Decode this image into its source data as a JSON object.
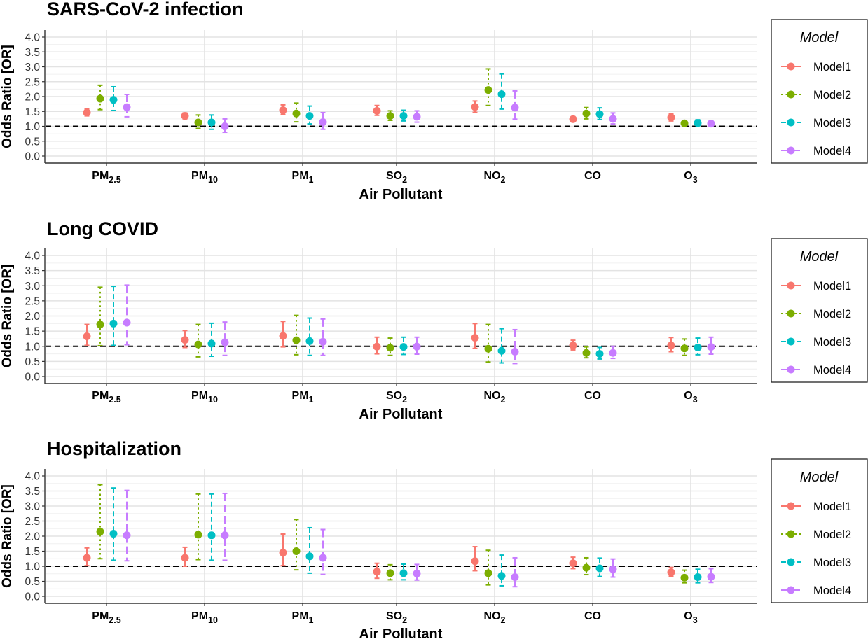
{
  "chart_data": [
    {
      "type": "errorbar",
      "title": "SARS-CoV-2 infection",
      "xlabel": "Air Pollutant",
      "ylabel": "Odds Ratio [OR]",
      "ylim": [
        0,
        4.0
      ],
      "yticks": [
        "0.0",
        "0.5",
        "1.0",
        "1.5",
        "2.0",
        "2.5",
        "3.0",
        "3.5",
        "4.0"
      ],
      "reference_line": 1.0,
      "categories": [
        {
          "base": "PM",
          "sub": "2.5"
        },
        {
          "base": "PM",
          "sub": "10"
        },
        {
          "base": "PM",
          "sub": "1"
        },
        {
          "base": "SO",
          "sub": "2"
        },
        {
          "base": "NO",
          "sub": "2"
        },
        {
          "base": "CO",
          "sub": ""
        },
        {
          "base": "O",
          "sub": "3"
        }
      ],
      "series": [
        {
          "name": "Model1",
          "or": [
            1.46,
            1.35,
            1.54,
            1.52,
            1.65,
            1.24,
            1.3
          ],
          "lower": [
            1.35,
            1.25,
            1.4,
            1.37,
            1.47,
            1.18,
            1.18
          ],
          "upper": [
            1.58,
            1.45,
            1.72,
            1.7,
            1.85,
            1.3,
            1.42
          ]
        },
        {
          "name": "Model2",
          "or": [
            1.93,
            1.13,
            1.43,
            1.35,
            2.22,
            1.43,
            1.1
          ],
          "lower": [
            1.56,
            0.93,
            1.15,
            1.2,
            1.7,
            1.25,
            1.02
          ],
          "upper": [
            2.38,
            1.38,
            1.78,
            1.52,
            2.93,
            1.63,
            1.2
          ]
        },
        {
          "name": "Model3",
          "or": [
            1.89,
            1.13,
            1.35,
            1.35,
            2.08,
            1.41,
            1.11
          ],
          "lower": [
            1.53,
            0.9,
            1.08,
            1.18,
            1.58,
            1.23,
            1.02
          ],
          "upper": [
            2.33,
            1.38,
            1.68,
            1.54,
            2.76,
            1.62,
            1.22
          ]
        },
        {
          "name": "Model4",
          "or": [
            1.64,
            1.0,
            1.14,
            1.32,
            1.63,
            1.25,
            1.09
          ],
          "lower": [
            1.32,
            0.8,
            0.9,
            1.14,
            1.24,
            1.08,
            1.0
          ],
          "upper": [
            2.07,
            1.25,
            1.46,
            1.52,
            2.19,
            1.45,
            1.2
          ]
        }
      ]
    },
    {
      "type": "errorbar",
      "title": "Long COVID",
      "xlabel": "Air Pollutant",
      "ylabel": "Odds Ratio [OR]",
      "ylim": [
        0,
        4.0
      ],
      "yticks": [
        "0.0",
        "0.5",
        "1.0",
        "1.5",
        "2.0",
        "2.5",
        "3.0",
        "3.5",
        "4.0"
      ],
      "reference_line": 1.0,
      "categories": [
        {
          "base": "PM",
          "sub": "2.5"
        },
        {
          "base": "PM",
          "sub": "10"
        },
        {
          "base": "PM",
          "sub": "1"
        },
        {
          "base": "SO",
          "sub": "2"
        },
        {
          "base": "NO",
          "sub": "2"
        },
        {
          "base": "CO",
          "sub": ""
        },
        {
          "base": "O",
          "sub": "3"
        }
      ],
      "series": [
        {
          "name": "Model1",
          "or": [
            1.33,
            1.21,
            1.34,
            0.99,
            1.28,
            1.03,
            1.03
          ],
          "lower": [
            1.03,
            0.96,
            0.98,
            0.75,
            0.93,
            0.88,
            0.82
          ],
          "upper": [
            1.72,
            1.52,
            1.82,
            1.3,
            1.75,
            1.2,
            1.29
          ]
        },
        {
          "name": "Model2",
          "or": [
            1.72,
            1.06,
            1.2,
            0.95,
            0.92,
            0.78,
            0.93
          ],
          "lower": [
            1.02,
            0.65,
            0.72,
            0.7,
            0.48,
            0.62,
            0.7
          ],
          "upper": [
            2.95,
            1.72,
            2.02,
            1.27,
            1.72,
            0.98,
            1.24
          ]
        },
        {
          "name": "Model3",
          "or": [
            1.75,
            1.09,
            1.17,
            0.98,
            0.85,
            0.75,
            0.96
          ],
          "lower": [
            1.03,
            0.67,
            0.7,
            0.73,
            0.45,
            0.58,
            0.72
          ],
          "upper": [
            2.98,
            1.76,
            1.93,
            1.3,
            1.58,
            0.96,
            1.27
          ]
        },
        {
          "name": "Model4",
          "or": [
            1.78,
            1.13,
            1.15,
            0.99,
            0.82,
            0.78,
            0.98
          ],
          "lower": [
            1.05,
            0.7,
            0.7,
            0.74,
            0.43,
            0.6,
            0.74
          ],
          "upper": [
            3.02,
            1.8,
            1.9,
            1.3,
            1.55,
            1.0,
            1.3
          ]
        }
      ]
    },
    {
      "type": "errorbar",
      "title": "Hospitalization",
      "xlabel": "Air Pollutant",
      "ylabel": "Odds Ratio [OR]",
      "ylim": [
        0,
        4.0
      ],
      "yticks": [
        "0.0",
        "0.5",
        "1.0",
        "1.5",
        "2.0",
        "2.5",
        "3.0",
        "3.5",
        "4.0"
      ],
      "reference_line": 1.0,
      "categories": [
        {
          "base": "PM",
          "sub": "2.5"
        },
        {
          "base": "PM",
          "sub": "10"
        },
        {
          "base": "PM",
          "sub": "1"
        },
        {
          "base": "SO",
          "sub": "2"
        },
        {
          "base": "NO",
          "sub": "2"
        },
        {
          "base": "CO",
          "sub": ""
        },
        {
          "base": "O",
          "sub": "3"
        }
      ],
      "series": [
        {
          "name": "Model1",
          "or": [
            1.28,
            1.28,
            1.45,
            0.82,
            1.17,
            1.1,
            0.8
          ],
          "lower": [
            1.02,
            1.0,
            1.02,
            0.6,
            0.85,
            0.92,
            0.67
          ],
          "upper": [
            1.61,
            1.63,
            2.07,
            1.1,
            1.65,
            1.3,
            0.96
          ]
        },
        {
          "name": "Model2",
          "or": [
            2.15,
            2.05,
            1.5,
            0.77,
            0.77,
            0.95,
            0.62
          ],
          "lower": [
            1.25,
            1.22,
            0.88,
            0.55,
            0.38,
            0.72,
            0.45
          ],
          "upper": [
            3.71,
            3.4,
            2.55,
            1.05,
            1.53,
            1.28,
            0.87
          ]
        },
        {
          "name": "Model3",
          "or": [
            2.08,
            2.03,
            1.33,
            0.77,
            0.68,
            0.93,
            0.64
          ],
          "lower": [
            1.2,
            1.2,
            0.77,
            0.55,
            0.35,
            0.66,
            0.45
          ],
          "upper": [
            3.6,
            3.4,
            2.28,
            1.07,
            1.37,
            1.27,
            0.9
          ]
        },
        {
          "name": "Model4",
          "or": [
            2.03,
            2.03,
            1.28,
            0.76,
            0.64,
            0.9,
            0.65
          ],
          "lower": [
            1.18,
            1.2,
            0.73,
            0.54,
            0.32,
            0.64,
            0.46
          ],
          "upper": [
            3.52,
            3.42,
            2.22,
            1.06,
            1.28,
            1.24,
            0.92
          ]
        }
      ]
    }
  ],
  "legend": {
    "title": "Model",
    "placement": "right",
    "entries": [
      {
        "name": "Model1",
        "color": "#F8766D",
        "dash": "solid"
      },
      {
        "name": "Model2",
        "color": "#7CAE00",
        "dash": "dotted"
      },
      {
        "name": "Model3",
        "color": "#00BFC4",
        "dash": "dashed"
      },
      {
        "name": "Model4",
        "color": "#C77CFF",
        "dash": "longdash"
      }
    ]
  },
  "grid": true
}
